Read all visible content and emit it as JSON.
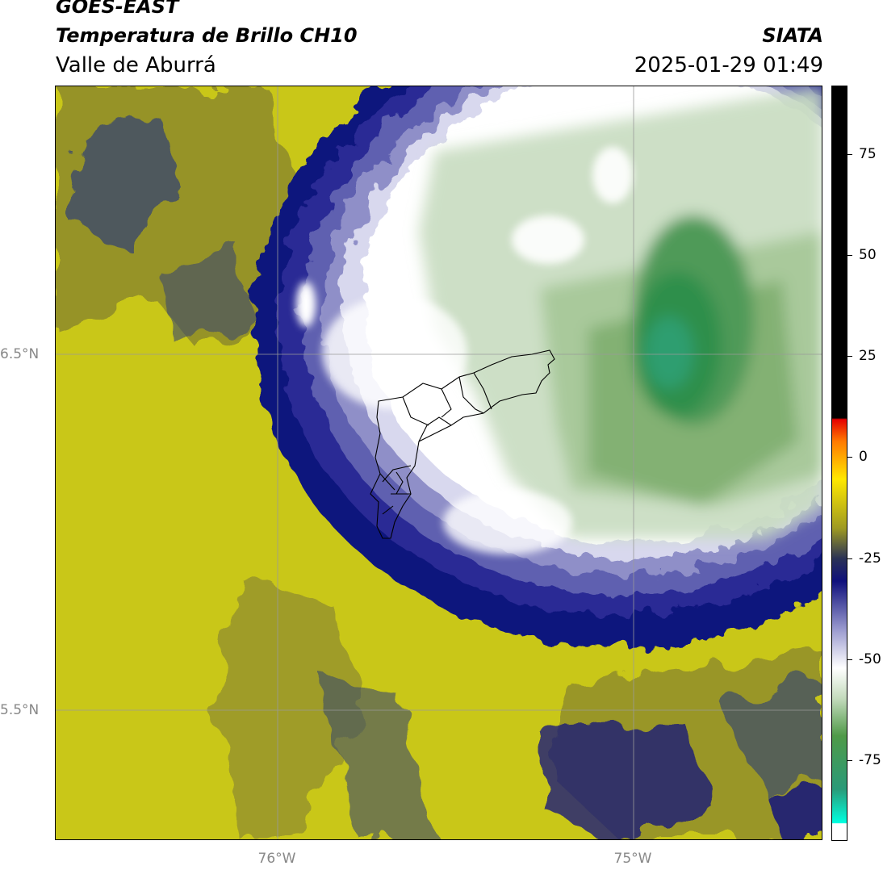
{
  "header": {
    "satellite": "GOES-EAST",
    "product": "Temperatura de Brillo CH10",
    "region": "Valle de Aburrá",
    "organization": "SIATA",
    "timestamp": "2025-01-29 01:49"
  },
  "map": {
    "lat_labels": [
      "6.5°N",
      "5.5°N"
    ],
    "lon_labels": [
      "76°W",
      "75°W"
    ],
    "colors": {
      "warm_surface": "#c9c718",
      "mid_olive": "#8d8a2c",
      "dark_slate": "#3b4a6b",
      "navy": "#10127d",
      "lavender": "#8f8fc8",
      "pale": "#d8d8ee",
      "cloud_white": "#ffffff",
      "light_green": "#c8dcc0",
      "mid_green": "#7fae6f",
      "deep_green": "#2f8f4b"
    }
  },
  "colorbar": {
    "labels": [
      "75",
      "50",
      "25",
      "0",
      "-25",
      "-50",
      "-75"
    ],
    "values": [
      75,
      50,
      25,
      0,
      -25,
      -50,
      -75
    ],
    "range": [
      -95,
      92
    ]
  }
}
